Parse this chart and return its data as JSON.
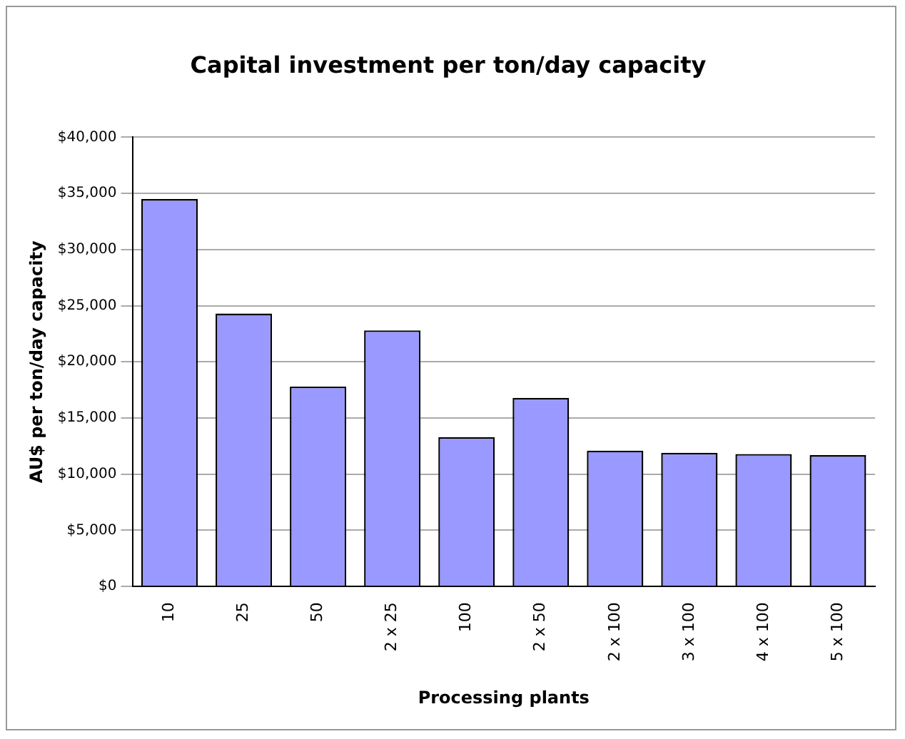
{
  "chart_data": {
    "type": "bar",
    "title": "Capital investment per ton/day capacity",
    "xlabel": "Processing plants",
    "ylabel": "AU$ per ton/day capacity",
    "categories": [
      "10",
      "25",
      "50",
      "2 x 25",
      "100",
      "2 x 50",
      "2 x 100",
      "3 x 100",
      "4 x 100",
      "5 x 100"
    ],
    "values": [
      34500,
      24300,
      17800,
      22800,
      13300,
      16800,
      12100,
      11900,
      11800,
      11700
    ],
    "color": "#9999ff",
    "ylim": [
      0,
      40000
    ],
    "yticks": [
      {
        "value": 0,
        "label": "$0"
      },
      {
        "value": 5000,
        "label": "$5,000"
      },
      {
        "value": 10000,
        "label": "$10,000"
      },
      {
        "value": 15000,
        "label": "$15,000"
      },
      {
        "value": 20000,
        "label": "$20,000"
      },
      {
        "value": 25000,
        "label": "$25,000"
      },
      {
        "value": 30000,
        "label": "$30,000"
      },
      {
        "value": 35000,
        "label": "$35,000"
      },
      {
        "value": 40000,
        "label": "$40,000"
      }
    ],
    "grid": "y",
    "legend": false
  }
}
